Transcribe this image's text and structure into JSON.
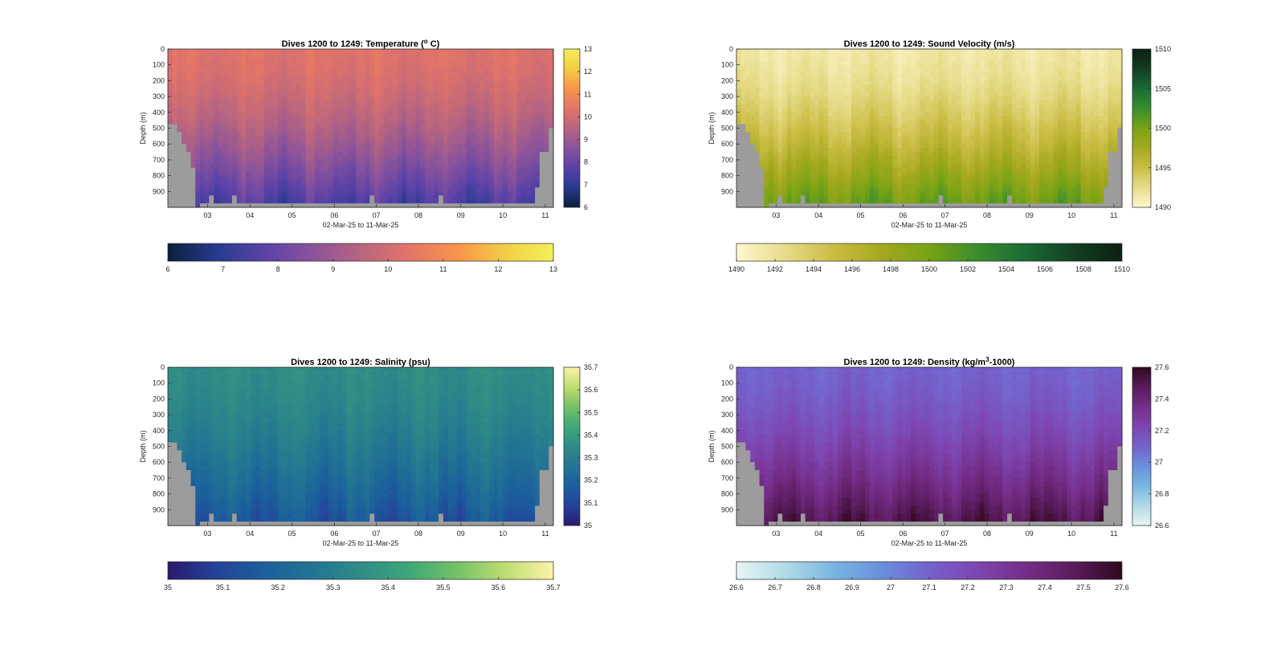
{
  "chart_data": [
    {
      "type": "heatmap",
      "title": "Dives 1200 to 1249: Temperature (° C)",
      "title_parts": {
        "prefix": "Dives 1200 to 1249: Temperature (",
        "sup": "o",
        "suffix": " C)"
      },
      "xlabel": "02-Mar-25 to 11-Mar-25",
      "ylabel": "Depth (m)",
      "x_ticks": [
        "03",
        "04",
        "05",
        "06",
        "07",
        "08",
        "09",
        "10",
        "11"
      ],
      "y_ticks": [
        "0",
        "100",
        "200",
        "300",
        "400",
        "500",
        "600",
        "700",
        "800",
        "900"
      ],
      "ylim": [
        0,
        1000
      ],
      "colorbar_ticks": [
        "6",
        "7",
        "8",
        "9",
        "10",
        "11",
        "12",
        "13"
      ],
      "horizontal_colorbar_ticks": [
        "6",
        "7",
        "8",
        "9",
        "10",
        "11",
        "12",
        "13"
      ],
      "clim": [
        6,
        13
      ],
      "profile": {
        "surface": 10.3,
        "bottom": 7.6
      },
      "colormap": [
        "#0c1f3c",
        "#273a8f",
        "#5a42a8",
        "#8a539c",
        "#b8657f",
        "#e27468",
        "#f8944a",
        "#f2cd46",
        "#f1f15a"
      ],
      "missing_color": "#9c9c9c",
      "grid": false
    },
    {
      "type": "heatmap",
      "title": "Dives 1200 to 1249: Sound Velocity (m/s)",
      "xlabel": "02-Mar-25 to 11-Mar-25",
      "ylabel": "Depth (m)",
      "x_ticks": [
        "03",
        "04",
        "05",
        "06",
        "07",
        "08",
        "09",
        "10",
        "11"
      ],
      "y_ticks": [
        "0",
        "100",
        "200",
        "300",
        "400",
        "500",
        "600",
        "700",
        "800",
        "900"
      ],
      "ylim": [
        0,
        1000
      ],
      "colorbar_ticks": [
        "1490",
        "1495",
        "1500",
        "1505",
        "1510"
      ],
      "horizontal_colorbar_ticks": [
        "1490",
        "1492",
        "1494",
        "1496",
        "1498",
        "1500",
        "1502",
        "1504",
        "1506",
        "1508",
        "1510"
      ],
      "clim": [
        1490,
        1510
      ],
      "profile": {
        "surface": 1491.5,
        "bottom": 1500.5
      },
      "colormap": [
        "#fdf7cf",
        "#e7dc8a",
        "#cabd45",
        "#a5a81e",
        "#78a315",
        "#3a8d2d",
        "#1a6b35",
        "#133f22",
        "#0a1f12"
      ],
      "missing_color": "#9c9c9c",
      "grid": false
    },
    {
      "type": "heatmap",
      "title": "Dives 1200 to 1249: Salinity (psu)",
      "xlabel": "02-Mar-25 to 11-Mar-25",
      "ylabel": "Depth (m)",
      "x_ticks": [
        "03",
        "04",
        "05",
        "06",
        "07",
        "08",
        "09",
        "10",
        "11"
      ],
      "y_ticks": [
        "0",
        "100",
        "200",
        "300",
        "400",
        "500",
        "600",
        "700",
        "800",
        "900"
      ],
      "ylim": [
        0,
        1000
      ],
      "colorbar_ticks": [
        "35",
        "35.1",
        "35.2",
        "35.3",
        "35.4",
        "35.5",
        "35.6",
        "35.7"
      ],
      "horizontal_colorbar_ticks": [
        "35",
        "35.1",
        "35.2",
        "35.3",
        "35.4",
        "35.5",
        "35.6",
        "35.7"
      ],
      "clim": [
        35.0,
        35.7
      ],
      "profile": {
        "surface": 35.35,
        "bottom": 35.15
      },
      "colormap": [
        "#2a1a6e",
        "#25429a",
        "#1b5f9c",
        "#237593",
        "#2f8c86",
        "#3ea779",
        "#74c166",
        "#bfdc72",
        "#fbf3a9"
      ],
      "missing_color": "#9c9c9c",
      "grid": false
    },
    {
      "type": "heatmap",
      "title": "Dives 1200 to 1249: Density (kg/m³-1000)",
      "title_parts": {
        "prefix": "Dives 1200 to 1249: Density (kg/m",
        "sup": "3",
        "suffix": "-1000)"
      },
      "xlabel": "02-Mar-25 to 11-Mar-25",
      "ylabel": "Depth (m)",
      "x_ticks": [
        "03",
        "04",
        "05",
        "06",
        "07",
        "08",
        "09",
        "10",
        "11"
      ],
      "y_ticks": [
        "0",
        "100",
        "200",
        "300",
        "400",
        "500",
        "600",
        "700",
        "800",
        "900"
      ],
      "ylim": [
        0,
        1000
      ],
      "colorbar_ticks": [
        "26.6",
        "26.8",
        "27",
        "27.2",
        "27.4",
        "27.6"
      ],
      "horizontal_colorbar_ticks": [
        "26.6",
        "26.7",
        "26.8",
        "26.9",
        "27",
        "27.1",
        "27.2",
        "27.3",
        "27.4",
        "27.5",
        "27.6"
      ],
      "clim": [
        26.6,
        27.6
      ],
      "profile": {
        "surface": 27.1,
        "bottom": 27.5
      },
      "colormap": [
        "#e8f4f4",
        "#b1dbe6",
        "#78b6e2",
        "#6a8fdc",
        "#7562cc",
        "#7e45b0",
        "#752e89",
        "#5a1c5c",
        "#30081f"
      ],
      "missing_color": "#9c9c9c",
      "grid": false
    }
  ]
}
